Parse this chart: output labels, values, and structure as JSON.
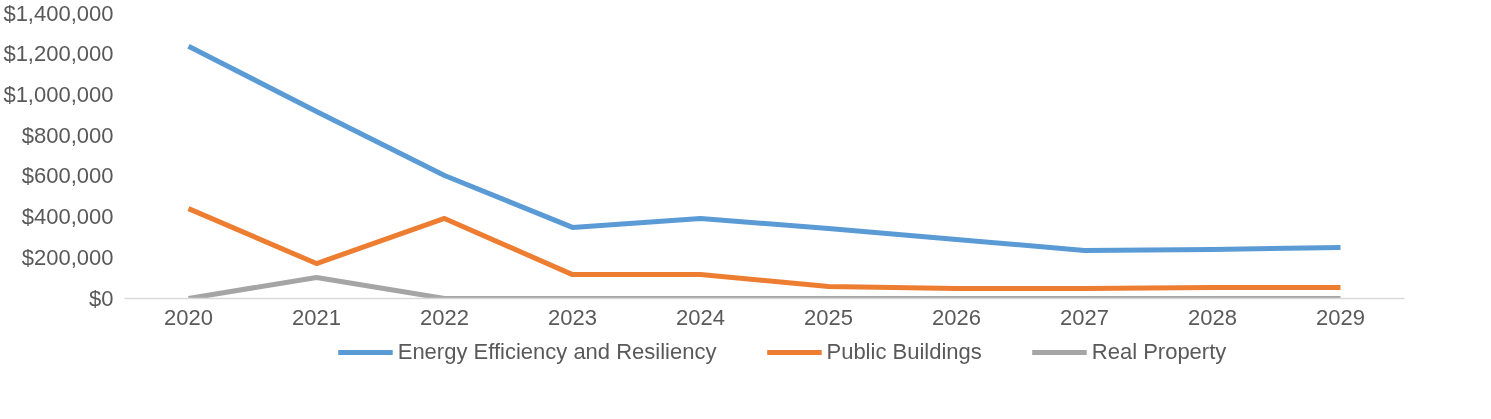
{
  "chart_data": {
    "type": "line",
    "categories": [
      "2020",
      "2021",
      "2022",
      "2023",
      "2024",
      "2025",
      "2026",
      "2027",
      "2028",
      "2029"
    ],
    "series": [
      {
        "name": "Energy Efficiency and Resiliency",
        "color": "#5b9bd5",
        "values": [
          1235000,
          915000,
          602000,
          348000,
          392000,
          343000,
          289000,
          235000,
          240000,
          250000
        ]
      },
      {
        "name": "Public Buildings",
        "color": "#ed7d31",
        "values": [
          440000,
          171000,
          392000,
          117000,
          117000,
          59000,
          49000,
          49000,
          54000,
          54000
        ]
      },
      {
        "name": "Real Property",
        "color": "#a5a5a5",
        "values": [
          0,
          103000,
          0,
          0,
          0,
          0,
          0,
          0,
          0,
          0
        ]
      }
    ],
    "ylim": [
      0,
      1400000
    ],
    "yticks": [
      {
        "value": 0,
        "label": "$0"
      },
      {
        "value": 200000,
        "label": "$200,000"
      },
      {
        "value": 400000,
        "label": "$400,000"
      },
      {
        "value": 600000,
        "label": "$600,000"
      },
      {
        "value": 800000,
        "label": "$800,000"
      },
      {
        "value": 1000000,
        "label": "$1,000,000"
      },
      {
        "value": 1200000,
        "label": "$1,200,000"
      },
      {
        "value": 1400000,
        "label": "$1,400,000"
      }
    ],
    "grid": false,
    "legend": "bottom",
    "marker": "none",
    "line_style": "solid"
  }
}
